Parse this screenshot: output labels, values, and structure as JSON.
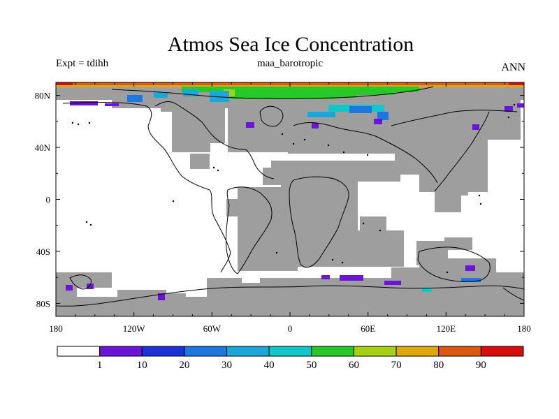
{
  "header": {
    "title": "Atmos Sea Ice Concentration",
    "left": "Expt = tdihh",
    "center": "maa_barotropic",
    "right": "ANN"
  },
  "map": {
    "lon_range": [
      -180,
      180
    ],
    "lat_range": [
      -90,
      90
    ],
    "x_ticks": [
      "180",
      "120W",
      "60W",
      "0",
      "60E",
      "120E",
      "180"
    ],
    "y_ticks": [
      "80N",
      "40N",
      "0",
      "40S",
      "80S"
    ],
    "colors": {
      "land": "#9e9e9e",
      "coast": "#000000"
    }
  },
  "colorbar": {
    "labels": [
      "1",
      "10",
      "20",
      "30",
      "40",
      "50",
      "60",
      "70",
      "80",
      "90"
    ],
    "colors": [
      "#ffffff",
      "#6a14d8",
      "#1c32d8",
      "#1c78e0",
      "#1aa8d8",
      "#10c8c8",
      "#28c828",
      "#a8d014",
      "#dca80c",
      "#dc5a10",
      "#d80c0c"
    ]
  }
}
